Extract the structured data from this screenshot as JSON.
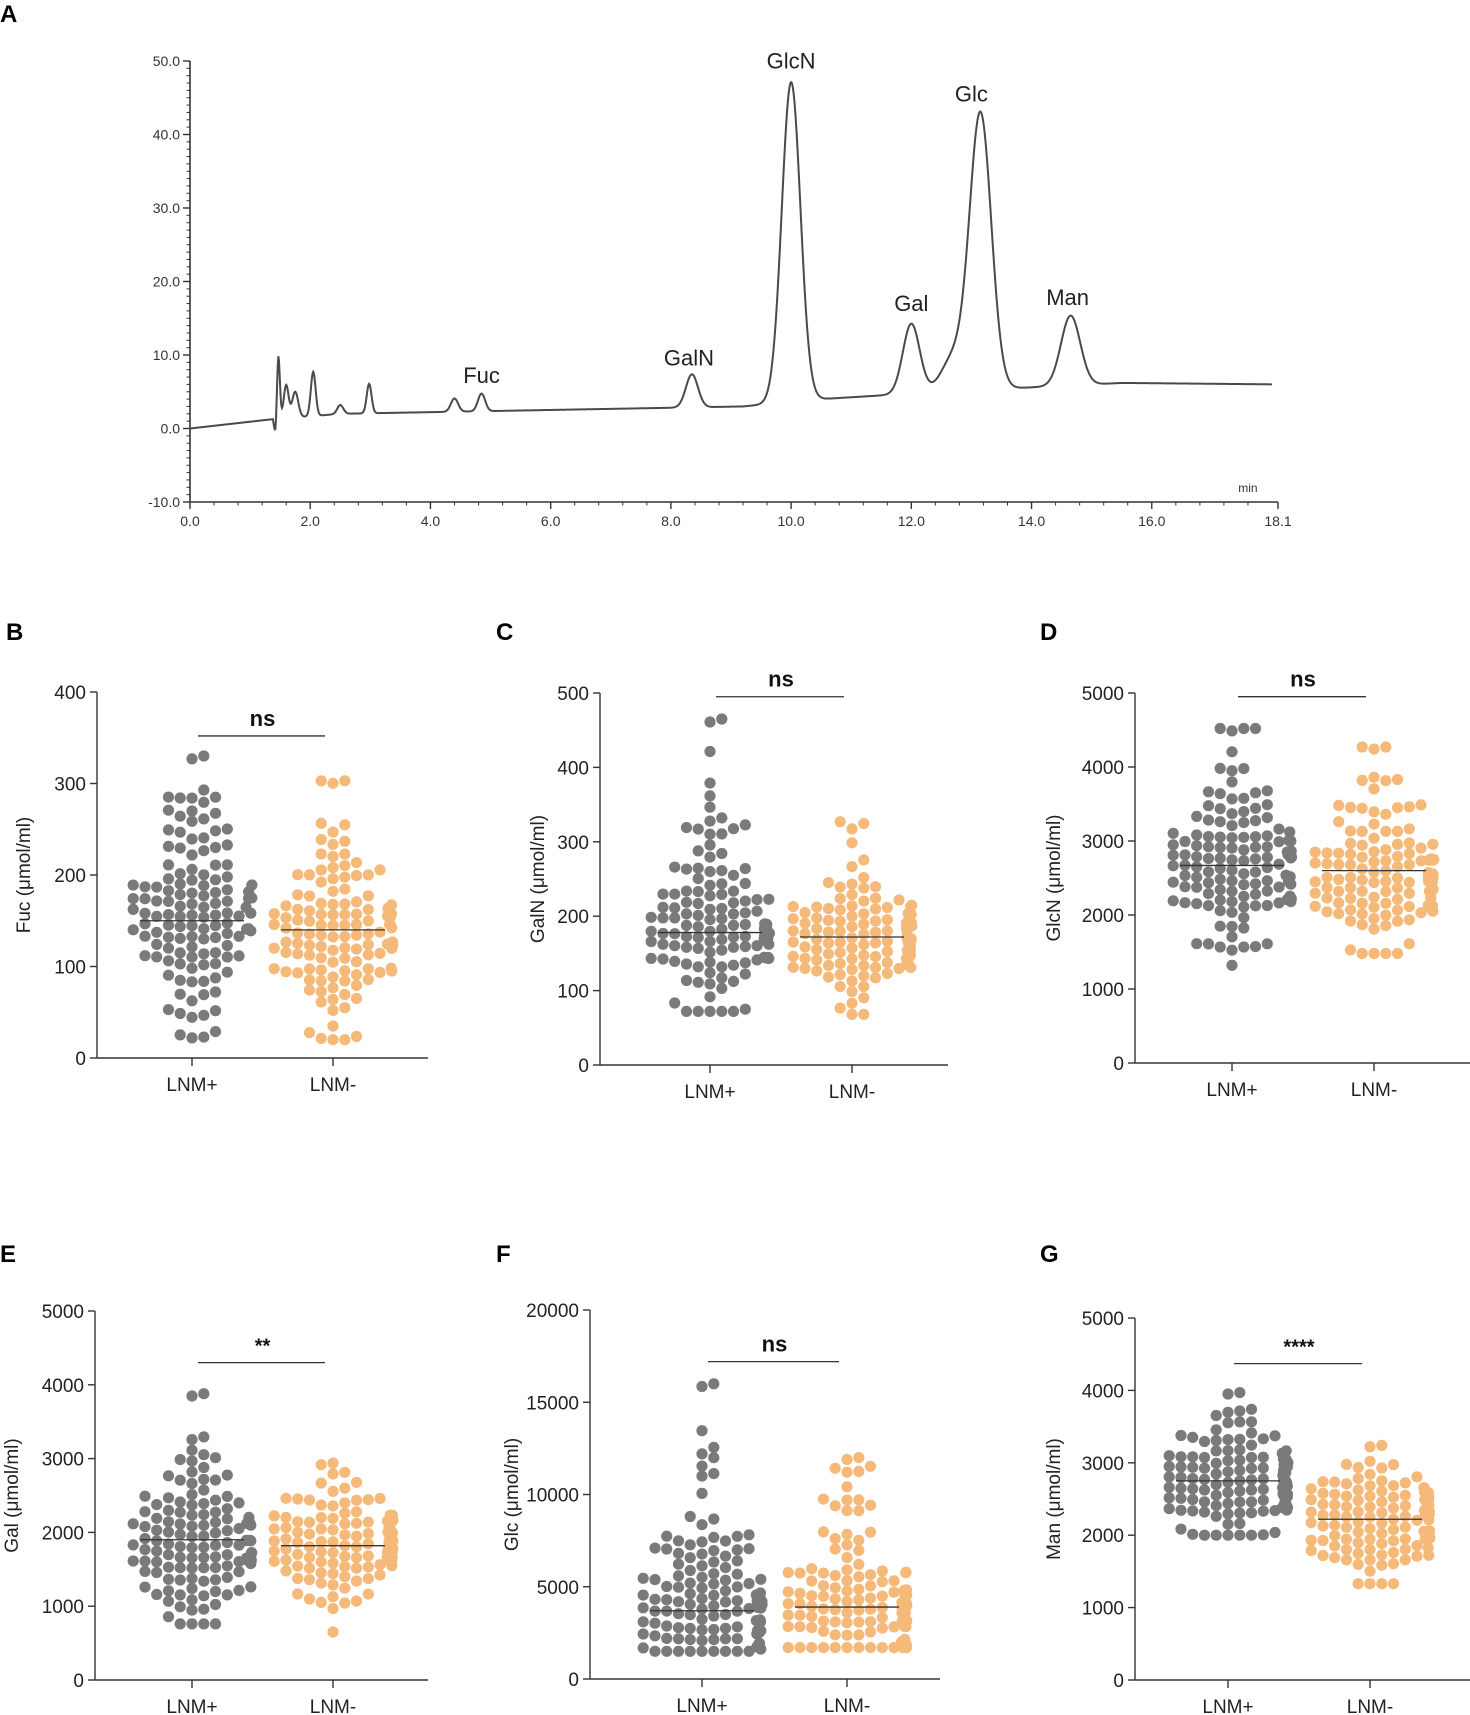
{
  "figure_title": "",
  "colors": {
    "lnm_pos": "#7a7a7a",
    "lnm_neg": "#f5b97a",
    "axis": "#333333",
    "trace": "#4a4a4a"
  },
  "chart_data": [
    {
      "panel": "A",
      "type": "line",
      "title": "",
      "xlabel": "",
      "x_unit_label": "min",
      "ylabel": "",
      "xlim": [
        0,
        18.1
      ],
      "ylim": [
        -10,
        50
      ],
      "x_ticks": [
        0,
        2,
        4,
        6,
        8,
        10,
        12,
        14,
        16,
        18.1
      ],
      "x_tick_labels": [
        "0.0",
        "2.0",
        "4.0",
        "6.0",
        "8.0",
        "10.0",
        "12.0",
        "14.0",
        "16.0",
        "18.1"
      ],
      "y_ticks": [
        -10,
        0,
        10,
        20,
        30,
        40,
        50
      ],
      "y_tick_labels": [
        "-10.0",
        "0.0",
        "10.0",
        "20.0",
        "30.0",
        "40.0",
        "50.0"
      ],
      "baseline": [
        [
          0,
          0
        ],
        [
          1.3,
          1.2
        ],
        [
          2.5,
          2.0
        ],
        [
          9.2,
          3.0
        ],
        [
          10.5,
          4.0
        ],
        [
          12.5,
          5.0
        ],
        [
          15.5,
          6.2
        ],
        [
          18.1,
          6.0
        ]
      ],
      "peaks": [
        {
          "t": 1.47,
          "h": 8.5,
          "w": 0.025
        },
        {
          "t": 1.6,
          "h": 4.5,
          "w": 0.04
        },
        {
          "t": 1.75,
          "h": 3.5,
          "w": 0.05
        },
        {
          "t": 2.05,
          "h": 6.0,
          "w": 0.04
        },
        {
          "t": 2.5,
          "h": 1.2,
          "w": 0.05
        },
        {
          "t": 2.98,
          "h": 4.0,
          "w": 0.04
        },
        {
          "t": 4.4,
          "h": 1.8,
          "w": 0.06
        },
        {
          "t": 4.85,
          "h": 2.4,
          "w": 0.06
        },
        {
          "t": 8.35,
          "h": 4.5,
          "w": 0.1
        },
        {
          "t": 10.0,
          "h": 43.5,
          "w": 0.155
        },
        {
          "t": 12.0,
          "h": 9.5,
          "w": 0.14
        },
        {
          "t": 12.7,
          "h": 4.5,
          "w": 0.2
        },
        {
          "t": 13.15,
          "h": 37.5,
          "w": 0.18
        },
        {
          "t": 14.65,
          "h": 9.5,
          "w": 0.16
        }
      ],
      "peak_labels": [
        {
          "label": "Fuc",
          "t": 4.85,
          "y": 6.2
        },
        {
          "label": "GalN",
          "t": 8.3,
          "y": 8.6
        },
        {
          "label": "GlcN",
          "t": 10.0,
          "y": 49.0
        },
        {
          "label": "Gal",
          "t": 12.0,
          "y": 16.0
        },
        {
          "label": "Glc",
          "t": 13.0,
          "y": 44.5
        },
        {
          "label": "Man",
          "t": 14.6,
          "y": 16.8
        }
      ]
    },
    {
      "panel": "B",
      "type": "scatter",
      "ylabel": "Fuc (μmol/ml)",
      "ylim": [
        0,
        400
      ],
      "y_ticks": [
        0,
        100,
        200,
        300,
        400
      ],
      "categories": [
        "LNM+",
        "LNM-"
      ],
      "n": [
        130,
        130
      ],
      "means": [
        150,
        140
      ],
      "ranges": [
        [
          22,
          330
        ],
        [
          20,
          303
        ]
      ],
      "sd": [
        65,
        55
      ],
      "skew": [
        0,
        0.15
      ],
      "significance": "ns"
    },
    {
      "panel": "C",
      "type": "scatter",
      "ylabel": "GalN (μmol/ml)",
      "ylim": [
        0,
        500
      ],
      "y_ticks": [
        0,
        100,
        200,
        300,
        400,
        500
      ],
      "categories": [
        "LNM+",
        "LNM-"
      ],
      "n": [
        130,
        130
      ],
      "means": [
        178,
        172
      ],
      "ranges": [
        [
          72,
          465
        ],
        [
          68,
          327
        ]
      ],
      "sd": [
        55,
        40
      ],
      "skew": [
        0.6,
        0.3
      ],
      "significance": "ns"
    },
    {
      "panel": "D",
      "type": "scatter",
      "ylabel": "GlcN (μmol/ml)",
      "ylim": [
        0,
        5000
      ],
      "y_ticks": [
        0,
        1000,
        2000,
        3000,
        4000,
        5000
      ],
      "categories": [
        "LNM+",
        "LNM-"
      ],
      "n": [
        130,
        130
      ],
      "means": [
        2670,
        2600
      ],
      "ranges": [
        [
          1320,
          4520
        ],
        [
          1480,
          4270
        ]
      ],
      "sd": [
        600,
        520
      ],
      "skew": [
        0.1,
        0.2
      ],
      "significance": "ns"
    },
    {
      "panel": "E",
      "type": "scatter",
      "ylabel": "Gal (μmol/ml)",
      "ylim": [
        0,
        5000
      ],
      "y_ticks": [
        0,
        1000,
        2000,
        3000,
        4000,
        5000
      ],
      "categories": [
        "LNM+",
        "LNM-"
      ],
      "n": [
        130,
        130
      ],
      "means": [
        1900,
        1820
      ],
      "ranges": [
        [
          760,
          3880
        ],
        [
          650,
          2940
        ]
      ],
      "sd": [
        520,
        420
      ],
      "skew": [
        0.2,
        0
      ],
      "significance": "**"
    },
    {
      "panel": "F",
      "type": "scatter",
      "ylabel": "Glc (μmol/ml)",
      "ylim": [
        0,
        20000
      ],
      "y_ticks": [
        0,
        5000,
        10000,
        15000,
        20000
      ],
      "categories": [
        "LNM+",
        "LNM-"
      ],
      "n": [
        130,
        130
      ],
      "means": [
        3700,
        3900
      ],
      "ranges": [
        [
          1500,
          16000
        ],
        [
          1700,
          12000
        ]
      ],
      "sd": [
        1800,
        1500
      ],
      "skew": [
        1.4,
        1.2
      ],
      "significance": "ns"
    },
    {
      "panel": "G",
      "type": "scatter",
      "ylabel": "Man (μmol/ml)",
      "ylim": [
        0,
        5000
      ],
      "y_ticks": [
        0,
        1000,
        2000,
        3000,
        4000,
        5000
      ],
      "categories": [
        "LNM+",
        "LNM-"
      ],
      "n": [
        130,
        130
      ],
      "means": [
        2750,
        2220
      ],
      "ranges": [
        [
          2000,
          3970
        ],
        [
          1330,
          3240
        ]
      ],
      "sd": [
        400,
        400
      ],
      "skew": [
        0,
        0
      ],
      "significance": "****"
    }
  ]
}
